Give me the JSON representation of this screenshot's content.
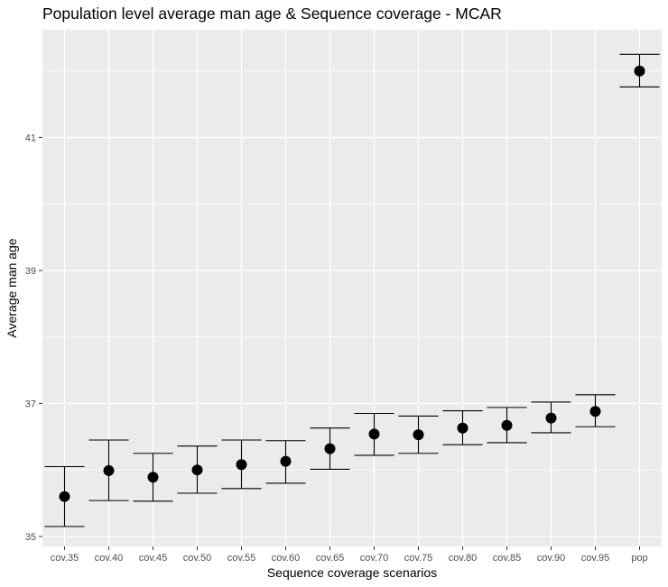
{
  "chart_data": {
    "type": "scatter",
    "title": "Population level average man age & Sequence coverage - MCAR",
    "xlabel": "Sequence coverage scenarios",
    "ylabel": "Average man age",
    "categories": [
      "cov.35",
      "cov.40",
      "cov.45",
      "cov.50",
      "cov.55",
      "cov.60",
      "cov.65",
      "cov.70",
      "cov.75",
      "cov.80",
      "cov.85",
      "cov.90",
      "cov.95",
      "pop"
    ],
    "values": [
      35.6,
      35.99,
      35.89,
      36.0,
      36.08,
      36.13,
      36.32,
      36.54,
      36.53,
      36.63,
      36.67,
      36.78,
      36.88,
      42.0
    ],
    "error_bars": {
      "lower": [
        35.15,
        35.54,
        35.53,
        35.65,
        35.72,
        35.8,
        36.01,
        36.22,
        36.25,
        36.38,
        36.41,
        36.56,
        36.65,
        41.76
      ],
      "upper": [
        36.05,
        36.45,
        36.25,
        36.36,
        36.45,
        36.44,
        36.63,
        36.85,
        36.81,
        36.89,
        36.94,
        37.02,
        37.13,
        42.25
      ]
    },
    "y_ticks": [
      "35",
      "37",
      "39",
      "41"
    ],
    "ylim": [
      34.85,
      42.62
    ],
    "grid": true,
    "legend": "none",
    "colors": {
      "panel": "#ebebeb",
      "grid": "#ffffff",
      "point": "#000000",
      "tick_text": "#4d4d4d"
    }
  }
}
